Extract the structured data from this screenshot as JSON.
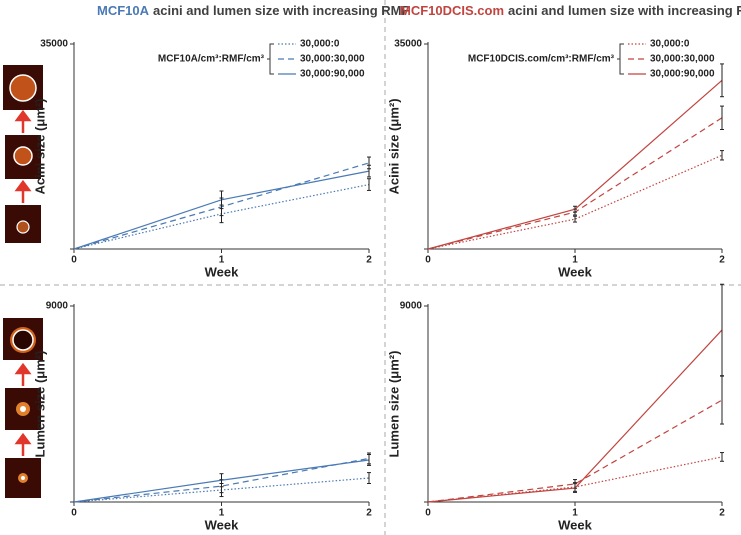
{
  "chart_data": [
    {
      "type": "line",
      "title": [
        "MCF10A",
        "acini and lumen size with increasing RMF"
      ],
      "title_colors": [
        "#4a7ab5",
        "#404040"
      ],
      "legend_title": "MCF10A/cm³:RMF/cm³",
      "ylabel": "Acini size (μm²)",
      "xlabel": "Week",
      "x": [
        0,
        1,
        2
      ],
      "xlim": [
        0,
        2
      ],
      "xticks": [
        0,
        1,
        2
      ],
      "ylim": [
        0,
        35000
      ],
      "yticks": [
        0,
        35000
      ],
      "series": [
        {
          "name": "30,000:0",
          "color": "#4a7ab5",
          "dash": "dotted",
          "values": [
            0,
            6000,
            11000
          ],
          "errors": [
            null,
            1500,
            1000
          ]
        },
        {
          "name": "30,000:30,000",
          "color": "#4a7ab5",
          "dash": "dashed",
          "values": [
            0,
            7200,
            14700
          ],
          "errors": [
            null,
            1500,
            1000
          ]
        },
        {
          "name": "30,000:90,000",
          "color": "#4a7ab5",
          "dash": "solid",
          "values": [
            0,
            8400,
            13300
          ],
          "errors": [
            null,
            1500,
            1000
          ]
        }
      ]
    },
    {
      "type": "line",
      "title": [
        "MCF10DCIS.com",
        "acini and lumen size with increasing RMF"
      ],
      "title_colors": [
        "#c1443f",
        "#404040"
      ],
      "legend_title": "MCF10DCIS.com/cm³:RMF/cm³",
      "ylabel": "Acini size (μm²)",
      "xlabel": "Week",
      "x": [
        0,
        1,
        2
      ],
      "xlim": [
        0,
        2
      ],
      "xticks": [
        0,
        1,
        2
      ],
      "ylim": [
        0,
        35000
      ],
      "yticks": [
        0,
        35000
      ],
      "series": [
        {
          "name": "30,000:0",
          "color": "#c1443f",
          "dash": "dotted",
          "values": [
            0,
            5100,
            16000
          ],
          "errors": [
            null,
            500,
            800
          ]
        },
        {
          "name": "30,000:30,000",
          "color": "#c1443f",
          "dash": "dashed",
          "values": [
            0,
            6300,
            22400
          ],
          "errors": [
            null,
            500,
            2000
          ]
        },
        {
          "name": "30,000:90,000",
          "color": "#c1443f",
          "dash": "solid",
          "values": [
            0,
            6800,
            28800
          ],
          "errors": [
            null,
            500,
            2800
          ]
        }
      ]
    },
    {
      "type": "line",
      "ylabel": "Lumen size (μm²)",
      "xlabel": "Week",
      "x": [
        0,
        1,
        2
      ],
      "xlim": [
        0,
        2
      ],
      "xticks": [
        0,
        1,
        2
      ],
      "ylim": [
        0,
        9000
      ],
      "yticks": [
        0,
        9000
      ],
      "series": [
        {
          "color": "#4a7ab5",
          "dash": "dotted",
          "values": [
            0,
            550,
            1100
          ],
          "errors": [
            null,
            300,
            250
          ]
        },
        {
          "color": "#4a7ab5",
          "dash": "dashed",
          "values": [
            0,
            730,
            2000
          ],
          "errors": [
            null,
            300,
            250
          ]
        },
        {
          "color": "#4a7ab5",
          "dash": "solid",
          "values": [
            0,
            1000,
            1930
          ],
          "errors": [
            null,
            300,
            250
          ]
        }
      ]
    },
    {
      "type": "line",
      "ylabel": "Lumen size (μm²)",
      "xlabel": "Week",
      "x": [
        0,
        1,
        2
      ],
      "xlim": [
        0,
        2
      ],
      "xticks": [
        0,
        1,
        2
      ],
      "ylim": [
        0,
        9000
      ],
      "yticks": [
        0,
        9000
      ],
      "series": [
        {
          "color": "#c1443f",
          "dash": "dotted",
          "values": [
            0,
            690,
            2070
          ],
          "errors": [
            null,
            200,
            200
          ]
        },
        {
          "color": "#c1443f",
          "dash": "dashed",
          "values": [
            0,
            830,
            4680
          ],
          "errors": [
            null,
            200,
            1100
          ]
        },
        {
          "color": "#c1443f",
          "dash": "solid",
          "values": [
            0,
            640,
            7900
          ],
          "errors": [
            null,
            200,
            2100
          ]
        }
      ]
    }
  ]
}
